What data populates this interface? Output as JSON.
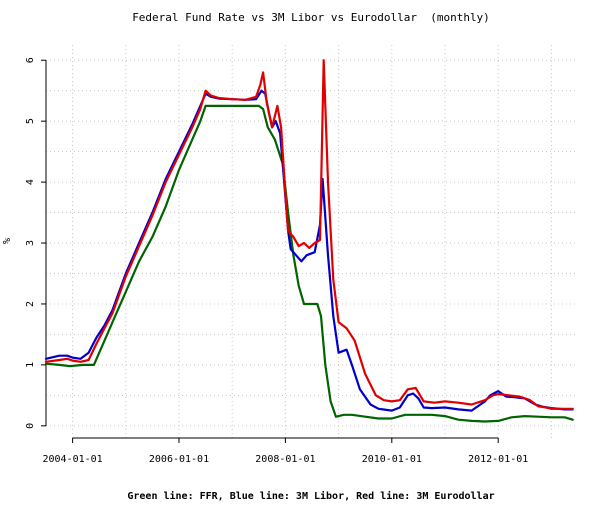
{
  "chart_data": {
    "type": "line",
    "title": "Federal Fund Rate vs 3M Libor vs Eurodollar  (monthly)",
    "caption": "Green line: FFR, Blue line: 3M Libor, Red line: 3M Eurodollar",
    "xlabel": "",
    "ylabel": "%",
    "x_tick_labels": [
      "2004-01-01",
      "2006-01-01",
      "2008-01-01",
      "2010-01-01",
      "2012-01-01"
    ],
    "x_tick_dates": [
      2004.0,
      2006.0,
      2008.0,
      2010.0,
      2012.0
    ],
    "y_tick_labels": [
      "0",
      "1",
      "2",
      "3",
      "4",
      "5",
      "6"
    ],
    "y_ticks": [
      0,
      1,
      2,
      3,
      4,
      5,
      6
    ],
    "xlim": [
      2003.5,
      2013.5
    ],
    "ylim": [
      -0.2,
      6.25
    ],
    "grid": true,
    "series": [
      {
        "name": "FFR",
        "color": "#006400",
        "points": [
          [
            2003.5,
            1.02
          ],
          [
            2003.75,
            1.0
          ],
          [
            2003.95,
            0.98
          ],
          [
            2004.2,
            1.0
          ],
          [
            2004.4,
            1.0
          ],
          [
            2004.55,
            1.3
          ],
          [
            2004.75,
            1.7
          ],
          [
            2005.0,
            2.2
          ],
          [
            2005.25,
            2.7
          ],
          [
            2005.5,
            3.1
          ],
          [
            2005.75,
            3.6
          ],
          [
            2006.0,
            4.2
          ],
          [
            2006.25,
            4.7
          ],
          [
            2006.4,
            5.0
          ],
          [
            2006.5,
            5.25
          ],
          [
            2006.75,
            5.25
          ],
          [
            2007.0,
            5.25
          ],
          [
            2007.25,
            5.25
          ],
          [
            2007.5,
            5.25
          ],
          [
            2007.58,
            5.2
          ],
          [
            2007.67,
            4.9
          ],
          [
            2007.8,
            4.7
          ],
          [
            2007.95,
            4.3
          ],
          [
            2008.05,
            3.5
          ],
          [
            2008.15,
            2.8
          ],
          [
            2008.25,
            2.3
          ],
          [
            2008.35,
            2.0
          ],
          [
            2008.5,
            2.0
          ],
          [
            2008.6,
            2.0
          ],
          [
            2008.67,
            1.8
          ],
          [
            2008.75,
            1.0
          ],
          [
            2008.85,
            0.4
          ],
          [
            2008.95,
            0.15
          ],
          [
            2009.1,
            0.18
          ],
          [
            2009.25,
            0.18
          ],
          [
            2009.5,
            0.15
          ],
          [
            2009.75,
            0.12
          ],
          [
            2010.0,
            0.12
          ],
          [
            2010.25,
            0.18
          ],
          [
            2010.5,
            0.18
          ],
          [
            2010.75,
            0.18
          ],
          [
            2011.0,
            0.16
          ],
          [
            2011.25,
            0.1
          ],
          [
            2011.5,
            0.08
          ],
          [
            2011.75,
            0.07
          ],
          [
            2012.0,
            0.08
          ],
          [
            2012.25,
            0.14
          ],
          [
            2012.5,
            0.16
          ],
          [
            2012.75,
            0.15
          ],
          [
            2013.0,
            0.14
          ],
          [
            2013.25,
            0.14
          ],
          [
            2013.4,
            0.1
          ]
        ]
      },
      {
        "name": "3M Libor",
        "color": "#0000cc",
        "points": [
          [
            2003.5,
            1.1
          ],
          [
            2003.75,
            1.15
          ],
          [
            2003.9,
            1.15
          ],
          [
            2004.0,
            1.12
          ],
          [
            2004.15,
            1.1
          ],
          [
            2004.3,
            1.2
          ],
          [
            2004.45,
            1.45
          ],
          [
            2004.6,
            1.65
          ],
          [
            2004.75,
            1.9
          ],
          [
            2005.0,
            2.5
          ],
          [
            2005.25,
            3.0
          ],
          [
            2005.5,
            3.5
          ],
          [
            2005.75,
            4.05
          ],
          [
            2006.0,
            4.5
          ],
          [
            2006.25,
            4.95
          ],
          [
            2006.4,
            5.25
          ],
          [
            2006.5,
            5.45
          ],
          [
            2006.6,
            5.4
          ],
          [
            2006.75,
            5.37
          ],
          [
            2007.0,
            5.36
          ],
          [
            2007.25,
            5.35
          ],
          [
            2007.45,
            5.36
          ],
          [
            2007.55,
            5.5
          ],
          [
            2007.62,
            5.45
          ],
          [
            2007.7,
            5.1
          ],
          [
            2007.75,
            4.9
          ],
          [
            2007.82,
            5.0
          ],
          [
            2007.9,
            4.8
          ],
          [
            2007.95,
            4.3
          ],
          [
            2008.05,
            3.2
          ],
          [
            2008.1,
            2.9
          ],
          [
            2008.2,
            2.8
          ],
          [
            2008.3,
            2.7
          ],
          [
            2008.4,
            2.8
          ],
          [
            2008.55,
            2.85
          ],
          [
            2008.65,
            3.3
          ],
          [
            2008.7,
            4.05
          ],
          [
            2008.8,
            2.8
          ],
          [
            2008.9,
            1.8
          ],
          [
            2009.0,
            1.2
          ],
          [
            2009.15,
            1.25
          ],
          [
            2009.25,
            1.0
          ],
          [
            2009.4,
            0.6
          ],
          [
            2009.6,
            0.35
          ],
          [
            2009.75,
            0.28
          ],
          [
            2010.0,
            0.25
          ],
          [
            2010.15,
            0.3
          ],
          [
            2010.3,
            0.5
          ],
          [
            2010.4,
            0.53
          ],
          [
            2010.5,
            0.45
          ],
          [
            2010.6,
            0.3
          ],
          [
            2010.75,
            0.29
          ],
          [
            2011.0,
            0.3
          ],
          [
            2011.25,
            0.27
          ],
          [
            2011.5,
            0.25
          ],
          [
            2011.75,
            0.4
          ],
          [
            2011.85,
            0.5
          ],
          [
            2012.0,
            0.57
          ],
          [
            2012.15,
            0.48
          ],
          [
            2012.3,
            0.47
          ],
          [
            2012.5,
            0.45
          ],
          [
            2012.7,
            0.35
          ],
          [
            2012.85,
            0.31
          ],
          [
            2013.0,
            0.29
          ],
          [
            2013.25,
            0.27
          ],
          [
            2013.4,
            0.27
          ]
        ]
      },
      {
        "name": "3M Eurodollar",
        "color": "#e00000",
        "points": [
          [
            2003.5,
            1.05
          ],
          [
            2003.75,
            1.08
          ],
          [
            2003.9,
            1.1
          ],
          [
            2004.0,
            1.07
          ],
          [
            2004.15,
            1.05
          ],
          [
            2004.3,
            1.08
          ],
          [
            2004.45,
            1.35
          ],
          [
            2004.6,
            1.6
          ],
          [
            2004.75,
            1.85
          ],
          [
            2005.0,
            2.45
          ],
          [
            2005.25,
            2.95
          ],
          [
            2005.5,
            3.45
          ],
          [
            2005.75,
            4.0
          ],
          [
            2006.0,
            4.45
          ],
          [
            2006.25,
            4.9
          ],
          [
            2006.4,
            5.2
          ],
          [
            2006.5,
            5.5
          ],
          [
            2006.6,
            5.42
          ],
          [
            2006.75,
            5.38
          ],
          [
            2007.0,
            5.36
          ],
          [
            2007.25,
            5.35
          ],
          [
            2007.45,
            5.4
          ],
          [
            2007.53,
            5.6
          ],
          [
            2007.58,
            5.8
          ],
          [
            2007.65,
            5.3
          ],
          [
            2007.75,
            4.9
          ],
          [
            2007.85,
            5.25
          ],
          [
            2007.92,
            4.9
          ],
          [
            2008.0,
            3.8
          ],
          [
            2008.05,
            3.2
          ],
          [
            2008.15,
            3.1
          ],
          [
            2008.25,
            2.95
          ],
          [
            2008.35,
            3.0
          ],
          [
            2008.45,
            2.92
          ],
          [
            2008.55,
            3.0
          ],
          [
            2008.65,
            3.05
          ],
          [
            2008.72,
            6.0
          ],
          [
            2008.8,
            4.0
          ],
          [
            2008.9,
            2.4
          ],
          [
            2009.0,
            1.7
          ],
          [
            2009.15,
            1.6
          ],
          [
            2009.3,
            1.4
          ],
          [
            2009.5,
            0.85
          ],
          [
            2009.7,
            0.5
          ],
          [
            2009.85,
            0.42
          ],
          [
            2010.0,
            0.4
          ],
          [
            2010.15,
            0.42
          ],
          [
            2010.3,
            0.6
          ],
          [
            2010.45,
            0.62
          ],
          [
            2010.6,
            0.4
          ],
          [
            2010.8,
            0.38
          ],
          [
            2011.0,
            0.4
          ],
          [
            2011.25,
            0.38
          ],
          [
            2011.5,
            0.35
          ],
          [
            2011.75,
            0.42
          ],
          [
            2011.9,
            0.5
          ],
          [
            2012.0,
            0.52
          ],
          [
            2012.2,
            0.5
          ],
          [
            2012.4,
            0.48
          ],
          [
            2012.6,
            0.42
          ],
          [
            2012.75,
            0.32
          ],
          [
            2012.9,
            0.3
          ],
          [
            2013.0,
            0.28
          ],
          [
            2013.25,
            0.28
          ],
          [
            2013.4,
            0.28
          ]
        ]
      }
    ]
  }
}
